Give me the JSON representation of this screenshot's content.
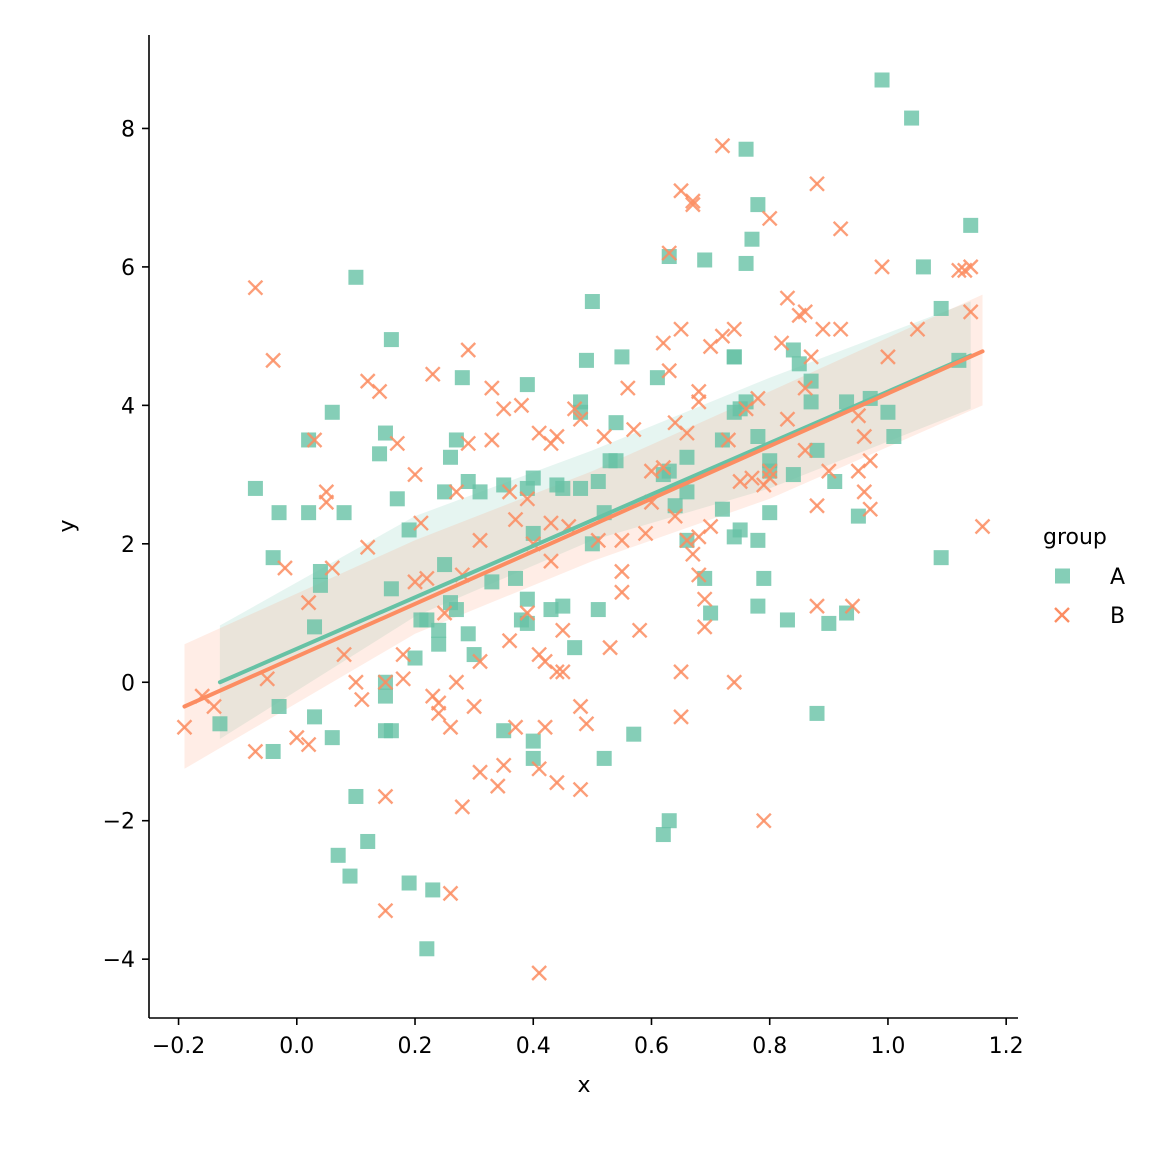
{
  "chart_data": {
    "type": "scatter",
    "title": "",
    "xlabel": "x",
    "ylabel": "y",
    "xlim": [
      -0.25,
      1.22
    ],
    "ylim": [
      -4.85,
      9.35
    ],
    "xticks": [
      -0.2,
      0.0,
      0.2,
      0.4,
      0.6,
      0.8,
      1.0,
      1.2
    ],
    "xtick_labels": [
      "−0.2",
      "0.0",
      "0.2",
      "0.4",
      "0.6",
      "0.8",
      "1.0",
      "1.2"
    ],
    "yticks": [
      -4,
      -2,
      0,
      2,
      4,
      6,
      8
    ],
    "ytick_labels": [
      "−4",
      "−2",
      "0",
      "2",
      "4",
      "6",
      "8"
    ],
    "grid": false,
    "legend": {
      "title": "group",
      "placement": "right"
    },
    "series": [
      {
        "name": "A",
        "marker": "square",
        "color": "#66c2a5",
        "regression": {
          "x": [
            -0.13,
            1.14
          ],
          "y": [
            0.0,
            4.72
          ]
        },
        "ci_band": {
          "x": [
            -0.13,
            0.2,
            0.5,
            0.8,
            1.14
          ],
          "upper": [
            0.82,
            2.4,
            3.35,
            4.4,
            5.5
          ],
          "lower": [
            -0.82,
            0.95,
            2.05,
            2.8,
            3.95
          ]
        },
        "points": [
          [
            -0.13,
            -0.6
          ],
          [
            -0.07,
            2.8
          ],
          [
            -0.04,
            1.8
          ],
          [
            -0.04,
            -1.0
          ],
          [
            -0.03,
            2.45
          ],
          [
            -0.03,
            -0.35
          ],
          [
            0.02,
            3.5
          ],
          [
            0.02,
            2.45
          ],
          [
            0.03,
            -0.5
          ],
          [
            0.03,
            0.8
          ],
          [
            0.04,
            1.6
          ],
          [
            0.04,
            1.4
          ],
          [
            0.06,
            3.9
          ],
          [
            0.06,
            -0.8
          ],
          [
            0.07,
            -2.5
          ],
          [
            0.08,
            2.45
          ],
          [
            0.09,
            -2.8
          ],
          [
            0.1,
            5.85
          ],
          [
            0.1,
            -1.65
          ],
          [
            0.12,
            -2.3
          ],
          [
            0.14,
            3.3
          ],
          [
            0.15,
            3.6
          ],
          [
            0.15,
            -0.7
          ],
          [
            0.15,
            0.0
          ],
          [
            0.15,
            -0.2
          ],
          [
            0.16,
            1.35
          ],
          [
            0.16,
            4.95
          ],
          [
            0.16,
            -0.7
          ],
          [
            0.17,
            2.65
          ],
          [
            0.19,
            -2.9
          ],
          [
            0.19,
            2.2
          ],
          [
            0.2,
            0.35
          ],
          [
            0.21,
            0.9
          ],
          [
            0.22,
            -3.85
          ],
          [
            0.22,
            0.9
          ],
          [
            0.23,
            -3.0
          ],
          [
            0.24,
            0.75
          ],
          [
            0.24,
            0.55
          ],
          [
            0.25,
            2.75
          ],
          [
            0.25,
            1.7
          ],
          [
            0.26,
            3.25
          ],
          [
            0.26,
            1.15
          ],
          [
            0.27,
            3.5
          ],
          [
            0.27,
            1.05
          ],
          [
            0.28,
            4.4
          ],
          [
            0.29,
            0.7
          ],
          [
            0.29,
            2.9
          ],
          [
            0.3,
            0.4
          ],
          [
            0.31,
            2.75
          ],
          [
            0.33,
            1.45
          ],
          [
            0.35,
            -0.7
          ],
          [
            0.35,
            2.85
          ],
          [
            0.37,
            1.5
          ],
          [
            0.38,
            0.9
          ],
          [
            0.39,
            1.2
          ],
          [
            0.39,
            0.85
          ],
          [
            0.39,
            2.8
          ],
          [
            0.39,
            4.3
          ],
          [
            0.4,
            -0.85
          ],
          [
            0.4,
            -1.1
          ],
          [
            0.4,
            2.95
          ],
          [
            0.4,
            2.15
          ],
          [
            0.43,
            1.05
          ],
          [
            0.44,
            2.85
          ],
          [
            0.45,
            1.1
          ],
          [
            0.45,
            2.8
          ],
          [
            0.47,
            0.5
          ],
          [
            0.48,
            4.05
          ],
          [
            0.48,
            3.9
          ],
          [
            0.48,
            2.8
          ],
          [
            0.49,
            4.65
          ],
          [
            0.5,
            2.0
          ],
          [
            0.5,
            5.5
          ],
          [
            0.51,
            1.05
          ],
          [
            0.51,
            2.9
          ],
          [
            0.52,
            -1.1
          ],
          [
            0.52,
            2.45
          ],
          [
            0.53,
            3.2
          ],
          [
            0.54,
            3.75
          ],
          [
            0.54,
            3.2
          ],
          [
            0.55,
            4.7
          ],
          [
            0.57,
            -0.75
          ],
          [
            0.61,
            4.4
          ],
          [
            0.62,
            -2.2
          ],
          [
            0.62,
            3.0
          ],
          [
            0.63,
            6.15
          ],
          [
            0.63,
            -2.0
          ],
          [
            0.63,
            3.05
          ],
          [
            0.64,
            2.55
          ],
          [
            0.66,
            3.25
          ],
          [
            0.66,
            2.75
          ],
          [
            0.66,
            2.05
          ],
          [
            0.69,
            6.1
          ],
          [
            0.69,
            1.5
          ],
          [
            0.7,
            1.0
          ],
          [
            0.72,
            3.5
          ],
          [
            0.72,
            2.5
          ],
          [
            0.74,
            4.7
          ],
          [
            0.74,
            4.7
          ],
          [
            0.74,
            3.9
          ],
          [
            0.74,
            2.1
          ],
          [
            0.75,
            3.95
          ],
          [
            0.75,
            2.2
          ],
          [
            0.76,
            7.7
          ],
          [
            0.76,
            6.05
          ],
          [
            0.76,
            4.05
          ],
          [
            0.77,
            6.4
          ],
          [
            0.78,
            3.55
          ],
          [
            0.78,
            6.9
          ],
          [
            0.78,
            2.05
          ],
          [
            0.78,
            1.1
          ],
          [
            0.79,
            1.5
          ],
          [
            0.8,
            3.2
          ],
          [
            0.8,
            3.05
          ],
          [
            0.8,
            2.45
          ],
          [
            0.83,
            0.9
          ],
          [
            0.84,
            3.0
          ],
          [
            0.84,
            4.8
          ],
          [
            0.85,
            4.6
          ],
          [
            0.87,
            4.05
          ],
          [
            0.87,
            4.35
          ],
          [
            0.88,
            3.35
          ],
          [
            0.88,
            -0.45
          ],
          [
            0.9,
            0.85
          ],
          [
            0.91,
            2.9
          ],
          [
            0.93,
            1.0
          ],
          [
            0.93,
            4.05
          ],
          [
            0.95,
            2.4
          ],
          [
            0.97,
            4.1
          ],
          [
            0.99,
            8.7
          ],
          [
            1.0,
            3.9
          ],
          [
            1.01,
            3.55
          ],
          [
            1.04,
            8.15
          ],
          [
            1.06,
            6.0
          ],
          [
            1.09,
            5.4
          ],
          [
            1.09,
            1.8
          ],
          [
            1.12,
            4.65
          ],
          [
            1.14,
            6.6
          ]
        ]
      },
      {
        "name": "B",
        "marker": "x",
        "color": "#fc8d62",
        "regression": {
          "x": [
            -0.19,
            1.16
          ],
          "y": [
            -0.35,
            4.78
          ]
        },
        "ci_band": {
          "x": [
            -0.19,
            0.2,
            0.5,
            0.8,
            1.16
          ],
          "upper": [
            0.55,
            2.05,
            3.05,
            4.2,
            5.6
          ],
          "lower": [
            -1.25,
            0.7,
            1.75,
            2.65,
            4.0
          ]
        },
        "points": [
          [
            -0.19,
            -0.65
          ],
          [
            -0.16,
            -0.2
          ],
          [
            -0.14,
            -0.35
          ],
          [
            -0.07,
            5.7
          ],
          [
            -0.07,
            -1.0
          ],
          [
            -0.05,
            0.05
          ],
          [
            -0.04,
            4.65
          ],
          [
            -0.02,
            1.65
          ],
          [
            0.0,
            -0.8
          ],
          [
            0.02,
            -0.9
          ],
          [
            0.02,
            1.15
          ],
          [
            0.03,
            3.5
          ],
          [
            0.05,
            2.6
          ],
          [
            0.05,
            2.75
          ],
          [
            0.06,
            1.65
          ],
          [
            0.08,
            0.4
          ],
          [
            0.1,
            0.0
          ],
          [
            0.11,
            -0.25
          ],
          [
            0.12,
            4.35
          ],
          [
            0.12,
            1.95
          ],
          [
            0.14,
            4.2
          ],
          [
            0.15,
            -1.65
          ],
          [
            0.15,
            -3.3
          ],
          [
            0.15,
            0.0
          ],
          [
            0.17,
            3.45
          ],
          [
            0.18,
            0.4
          ],
          [
            0.18,
            0.05
          ],
          [
            0.2,
            3.0
          ],
          [
            0.2,
            1.45
          ],
          [
            0.21,
            2.3
          ],
          [
            0.22,
            1.5
          ],
          [
            0.23,
            4.45
          ],
          [
            0.23,
            -0.2
          ],
          [
            0.24,
            -0.3
          ],
          [
            0.24,
            -0.45
          ],
          [
            0.25,
            1.0
          ],
          [
            0.26,
            -0.65
          ],
          [
            0.26,
            -3.05
          ],
          [
            0.27,
            0.0
          ],
          [
            0.27,
            2.75
          ],
          [
            0.28,
            1.55
          ],
          [
            0.28,
            -1.8
          ],
          [
            0.29,
            4.8
          ],
          [
            0.29,
            3.45
          ],
          [
            0.3,
            -0.35
          ],
          [
            0.31,
            0.3
          ],
          [
            0.31,
            2.05
          ],
          [
            0.31,
            -1.3
          ],
          [
            0.33,
            4.25
          ],
          [
            0.33,
            3.5
          ],
          [
            0.34,
            -1.5
          ],
          [
            0.35,
            3.95
          ],
          [
            0.35,
            -1.2
          ],
          [
            0.36,
            2.75
          ],
          [
            0.36,
            0.6
          ],
          [
            0.37,
            2.35
          ],
          [
            0.37,
            -0.65
          ],
          [
            0.38,
            4.0
          ],
          [
            0.39,
            2.65
          ],
          [
            0.39,
            1.0
          ],
          [
            0.4,
            2.0
          ],
          [
            0.41,
            -1.25
          ],
          [
            0.41,
            0.4
          ],
          [
            0.41,
            -4.2
          ],
          [
            0.41,
            3.6
          ],
          [
            0.42,
            0.3
          ],
          [
            0.42,
            -0.65
          ],
          [
            0.43,
            3.45
          ],
          [
            0.43,
            2.3
          ],
          [
            0.43,
            1.75
          ],
          [
            0.44,
            3.55
          ],
          [
            0.44,
            0.15
          ],
          [
            0.44,
            -1.45
          ],
          [
            0.45,
            0.75
          ],
          [
            0.45,
            0.15
          ],
          [
            0.46,
            2.25
          ],
          [
            0.47,
            3.95
          ],
          [
            0.48,
            -0.35
          ],
          [
            0.48,
            -1.55
          ],
          [
            0.48,
            3.8
          ],
          [
            0.49,
            -0.6
          ],
          [
            0.51,
            2.05
          ],
          [
            0.52,
            3.55
          ],
          [
            0.53,
            0.5
          ],
          [
            0.55,
            2.05
          ],
          [
            0.55,
            1.6
          ],
          [
            0.55,
            1.3
          ],
          [
            0.56,
            4.25
          ],
          [
            0.57,
            3.65
          ],
          [
            0.58,
            0.75
          ],
          [
            0.59,
            2.15
          ],
          [
            0.6,
            3.05
          ],
          [
            0.6,
            2.6
          ],
          [
            0.62,
            4.9
          ],
          [
            0.62,
            3.1
          ],
          [
            0.63,
            6.2
          ],
          [
            0.63,
            4.5
          ],
          [
            0.64,
            2.4
          ],
          [
            0.64,
            3.75
          ],
          [
            0.65,
            7.1
          ],
          [
            0.65,
            5.1
          ],
          [
            0.65,
            0.15
          ],
          [
            0.65,
            -0.5
          ],
          [
            0.66,
            3.6
          ],
          [
            0.66,
            2.05
          ],
          [
            0.67,
            6.9
          ],
          [
            0.67,
            6.95
          ],
          [
            0.67,
            1.85
          ],
          [
            0.68,
            4.2
          ],
          [
            0.68,
            4.05
          ],
          [
            0.68,
            2.1
          ],
          [
            0.68,
            1.55
          ],
          [
            0.69,
            1.2
          ],
          [
            0.69,
            0.8
          ],
          [
            0.7,
            4.85
          ],
          [
            0.7,
            2.25
          ],
          [
            0.72,
            7.75
          ],
          [
            0.72,
            5.0
          ],
          [
            0.73,
            3.5
          ],
          [
            0.74,
            5.1
          ],
          [
            0.74,
            0.0
          ],
          [
            0.75,
            2.9
          ],
          [
            0.76,
            3.95
          ],
          [
            0.77,
            2.95
          ],
          [
            0.78,
            4.1
          ],
          [
            0.79,
            2.85
          ],
          [
            0.79,
            -2.0
          ],
          [
            0.8,
            6.7
          ],
          [
            0.8,
            3.05
          ],
          [
            0.8,
            2.95
          ],
          [
            0.82,
            4.9
          ],
          [
            0.83,
            5.55
          ],
          [
            0.83,
            3.8
          ],
          [
            0.85,
            5.3
          ],
          [
            0.86,
            5.35
          ],
          [
            0.86,
            3.35
          ],
          [
            0.86,
            4.25
          ],
          [
            0.87,
            4.7
          ],
          [
            0.88,
            7.2
          ],
          [
            0.88,
            1.1
          ],
          [
            0.88,
            2.55
          ],
          [
            0.89,
            5.1
          ],
          [
            0.9,
            3.05
          ],
          [
            0.92,
            6.55
          ],
          [
            0.92,
            5.1
          ],
          [
            0.94,
            1.1
          ],
          [
            0.95,
            3.85
          ],
          [
            0.95,
            3.05
          ],
          [
            0.96,
            2.75
          ],
          [
            0.96,
            3.55
          ],
          [
            0.97,
            2.5
          ],
          [
            0.97,
            3.2
          ],
          [
            0.99,
            6.0
          ],
          [
            1.0,
            4.7
          ],
          [
            1.05,
            5.1
          ],
          [
            1.12,
            5.95
          ],
          [
            1.13,
            5.95
          ],
          [
            1.14,
            6.0
          ],
          [
            1.14,
            5.35
          ],
          [
            1.16,
            2.25
          ]
        ]
      }
    ]
  }
}
